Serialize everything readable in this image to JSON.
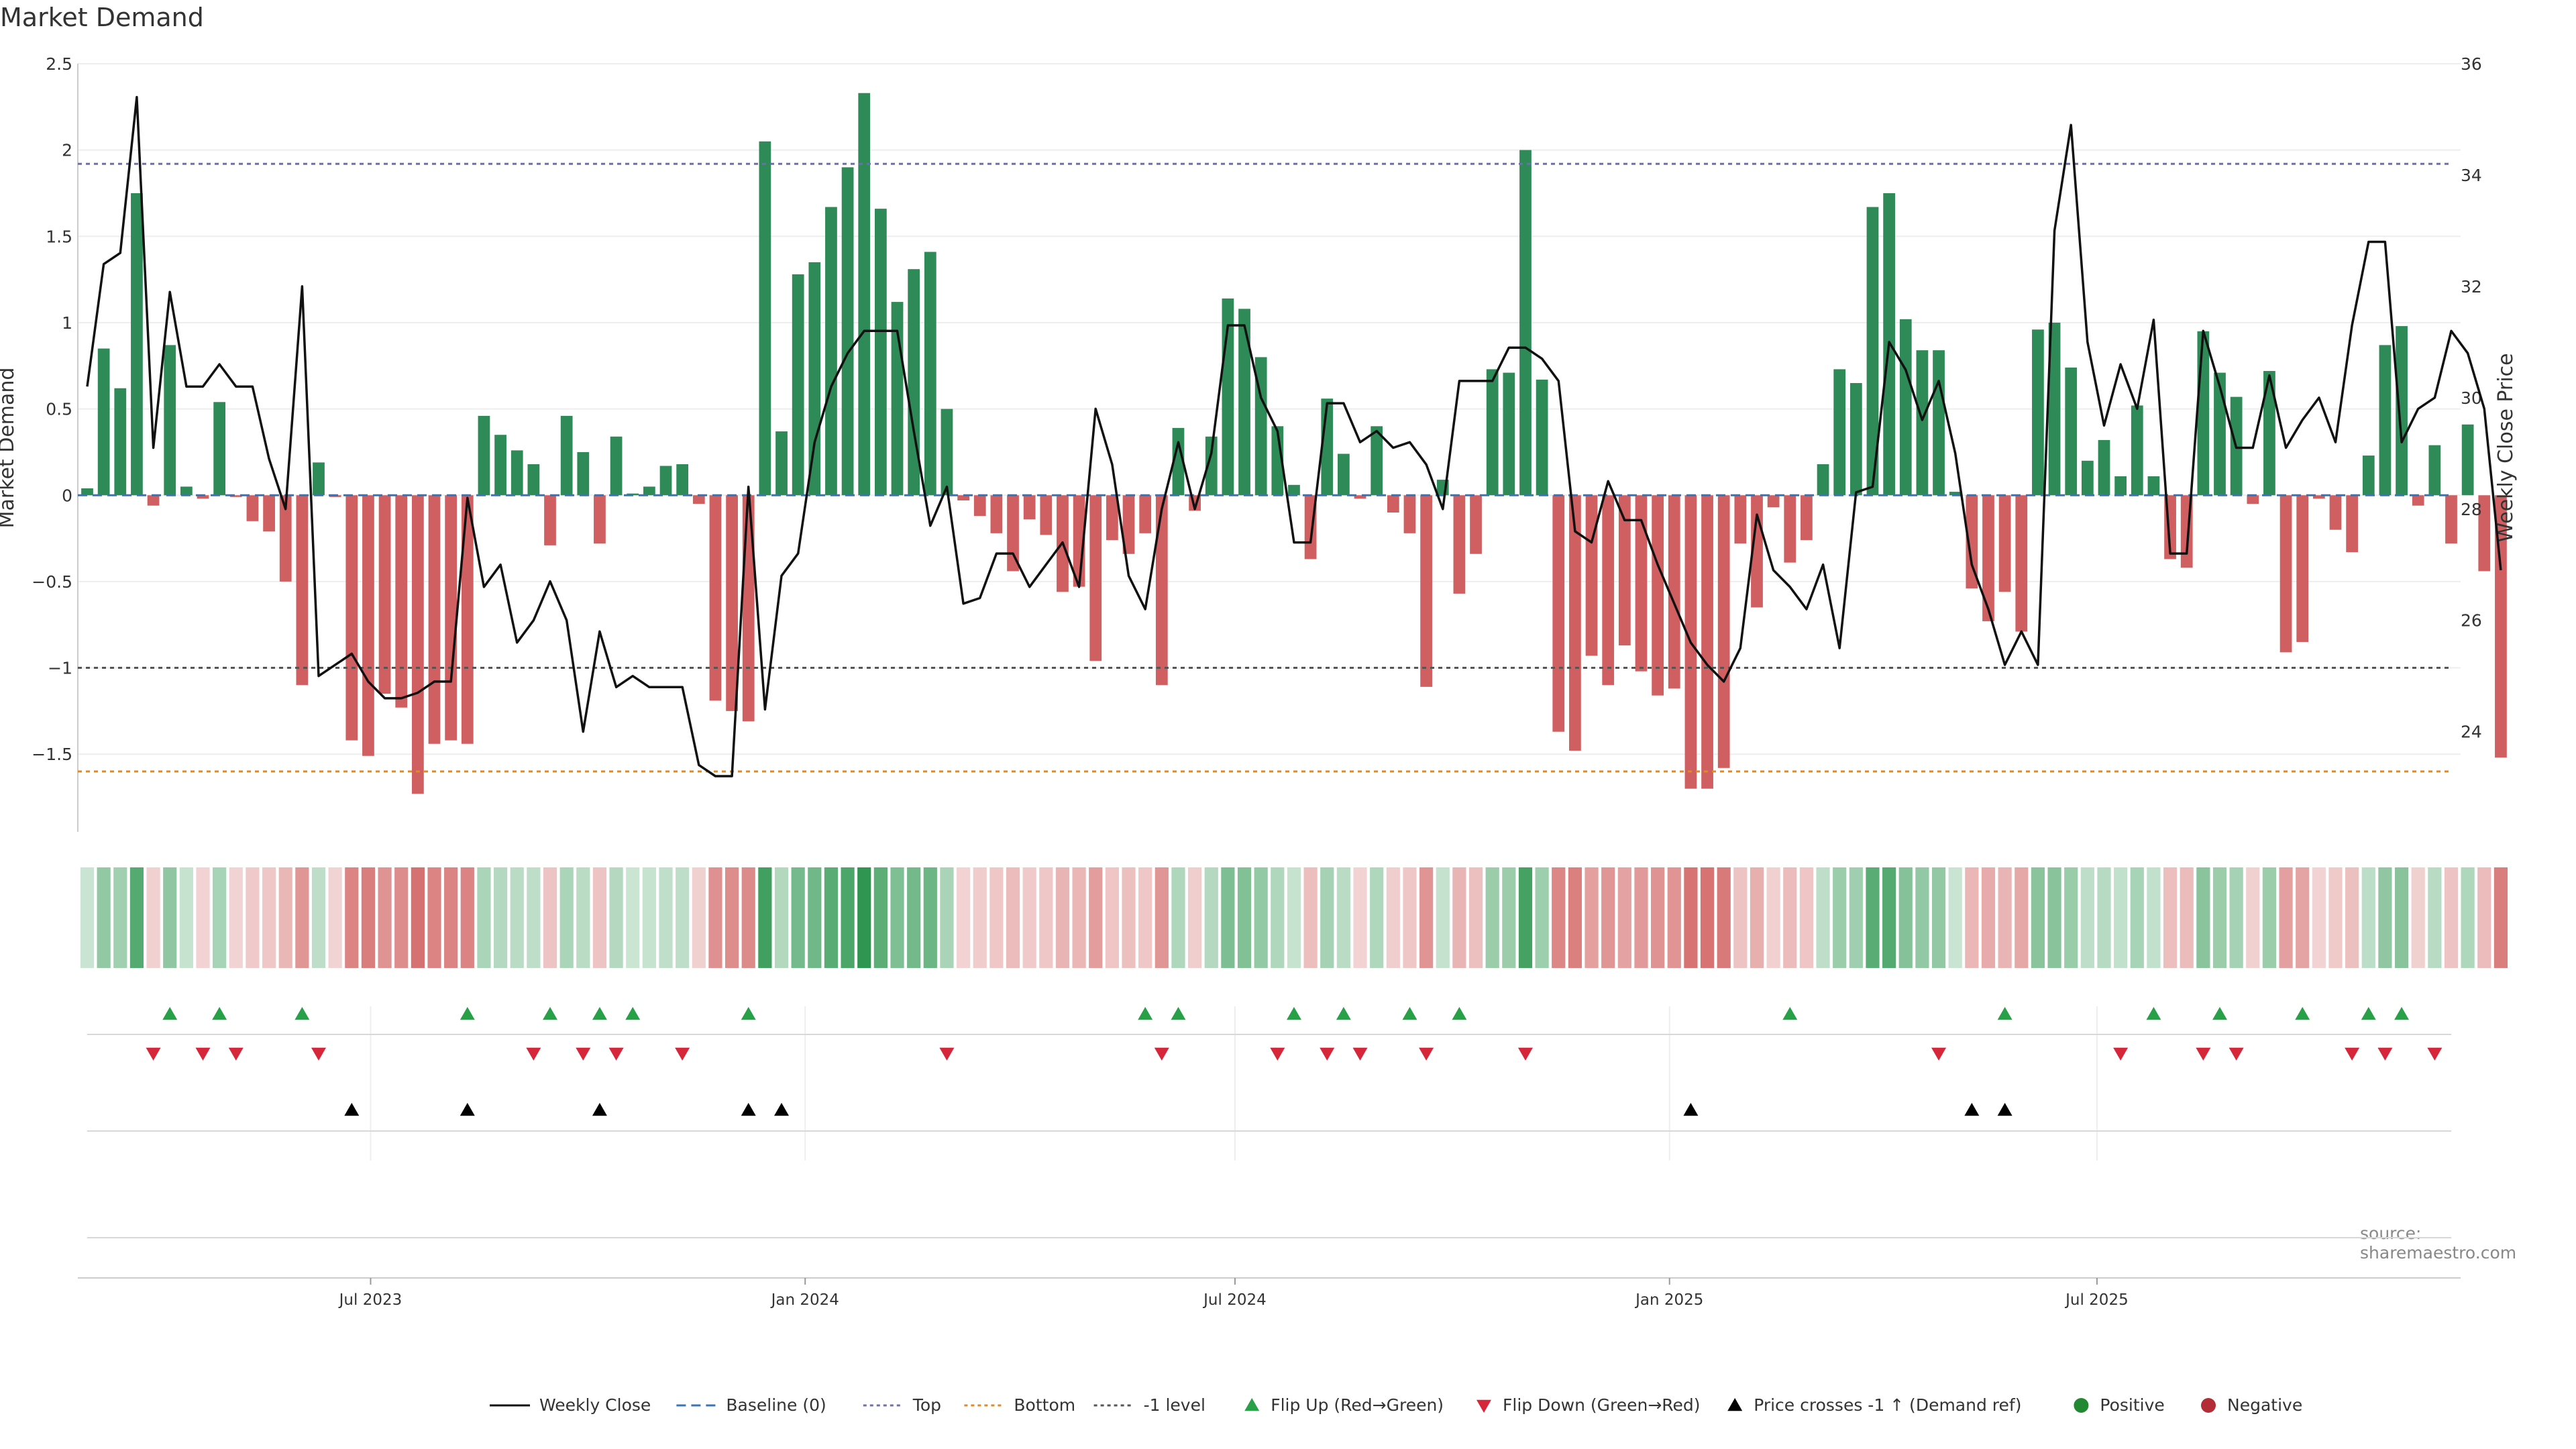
{
  "chart_data": {
    "type": "bar",
    "title": "Market Demand",
    "ylabel_left": "Market Demand",
    "ylabel_right": "Weekly Close Price",
    "ylim_left": [
      -1.95,
      2.5
    ],
    "ylim_right": [
      22.2,
      36.0
    ],
    "left_ticks": [
      2.5,
      2,
      1.5,
      1,
      0.5,
      0,
      -0.5,
      -1,
      -1.5
    ],
    "left_tick_labels": [
      "2.5",
      "2",
      "1.5",
      "1",
      "0.5",
      "0",
      "−0.5",
      "−1",
      "−1.5"
    ],
    "right_ticks": [
      36,
      34,
      32,
      30,
      28,
      26,
      24
    ],
    "right_tick_labels": [
      "36",
      "34",
      "32",
      "30",
      "28",
      "26",
      "24"
    ],
    "x_start": "2023-03-03",
    "week_count": 144,
    "x_ticks": [
      {
        "date": "2023-07-01",
        "label": "Jul 2023"
      },
      {
        "date": "2024-01-01",
        "label": "Jan 2024"
      },
      {
        "date": "2024-07-01",
        "label": "Jul 2024"
      },
      {
        "date": "2025-01-01",
        "label": "Jan 2025"
      },
      {
        "date": "2025-07-01",
        "label": "Jul 2025"
      }
    ],
    "reference_lines": {
      "top": 1.92,
      "bottom": -1.6,
      "minus_one": -1.0,
      "baseline": 0
    },
    "demand": [
      0.04,
      0.85,
      0.62,
      1.75,
      -0.06,
      0.87,
      0.05,
      -0.02,
      0.54,
      -0.01,
      -0.15,
      -0.21,
      -0.5,
      -1.1,
      0.19,
      -0.01,
      -1.42,
      -1.51,
      -1.15,
      -1.23,
      -1.73,
      -1.44,
      -1.42,
      -1.44,
      0.46,
      0.35,
      0.26,
      0.18,
      -0.29,
      0.46,
      0.25,
      -0.28,
      0.34,
      0.01,
      0.05,
      0.17,
      0.18,
      -0.05,
      -1.19,
      -1.25,
      -1.31,
      2.05,
      0.37,
      1.28,
      1.35,
      1.67,
      1.9,
      2.33,
      1.66,
      1.12,
      1.31,
      1.41,
      0.5,
      -0.03,
      -0.12,
      -0.22,
      -0.44,
      -0.14,
      -0.23,
      -0.56,
      -0.53,
      -0.96,
      -0.26,
      -0.34,
      -0.22,
      -1.1,
      0.39,
      -0.09,
      0.34,
      1.14,
      1.08,
      0.8,
      0.4,
      0.06,
      -0.37,
      0.56,
      0.24,
      -0.02,
      0.4,
      -0.1,
      -0.22,
      -1.11,
      0.09,
      -0.57,
      -0.34,
      0.73,
      0.71,
      2.0,
      0.67,
      -1.37,
      -1.48,
      -0.93,
      -1.1,
      -0.87,
      -1.02,
      -1.16,
      -1.12,
      -1.7,
      -1.7,
      -1.58,
      -0.28,
      -0.65,
      -0.07,
      -0.39,
      -0.26,
      0.18,
      0.73,
      0.65,
      1.67,
      1.75,
      1.02,
      0.84,
      0.84,
      0.02,
      -0.54,
      -0.73,
      -0.56,
      -0.79,
      0.96,
      1.0,
      0.74,
      0.2,
      0.32,
      0.11,
      0.52,
      0.11,
      -0.37,
      -0.42,
      0.95,
      0.71,
      0.57,
      -0.05,
      0.72,
      -0.91,
      -0.85,
      -0.02,
      -0.2,
      -0.33,
      0.23,
      0.87,
      0.98,
      -0.06,
      0.29,
      -0.28,
      0.41,
      -0.44,
      -1.52
    ],
    "close": [
      30.2,
      32.4,
      32.6,
      35.4,
      29.1,
      31.9,
      30.2,
      30.2,
      30.6,
      30.2,
      30.2,
      28.9,
      28.0,
      32.0,
      25.0,
      25.2,
      25.4,
      24.9,
      24.6,
      24.6,
      24.7,
      24.9,
      24.9,
      28.2,
      26.6,
      27.0,
      25.6,
      26.0,
      26.7,
      26.0,
      24.0,
      25.8,
      24.8,
      25.0,
      24.8,
      24.8,
      24.8,
      23.4,
      23.2,
      23.2,
      28.4,
      24.4,
      26.8,
      27.2,
      29.2,
      30.2,
      30.8,
      31.2,
      31.2,
      31.2,
      29.4,
      27.7,
      28.4,
      26.3,
      26.4,
      27.2,
      27.2,
      26.6,
      27.0,
      27.4,
      26.6,
      29.8,
      28.8,
      26.8,
      26.2,
      28.0,
      29.2,
      28.0,
      29.0,
      31.3,
      31.3,
      30.0,
      29.4,
      27.4,
      27.4,
      29.9,
      29.9,
      29.2,
      29.4,
      29.1,
      29.2,
      28.8,
      28.0,
      30.3,
      30.3,
      30.3,
      30.9,
      30.9,
      30.7,
      30.3,
      27.6,
      27.4,
      28.5,
      27.8,
      27.8,
      27.0,
      26.3,
      25.6,
      25.2,
      24.9,
      25.5,
      27.9,
      26.9,
      26.6,
      26.2,
      27.0,
      25.5,
      28.3,
      28.4,
      31.0,
      30.5,
      29.6,
      30.3,
      29.0,
      27.0,
      26.2,
      25.2,
      25.8,
      25.2,
      33.0,
      34.9,
      31.0,
      29.5,
      30.6,
      29.8,
      31.4,
      27.2,
      27.2,
      31.2,
      30.2,
      29.1,
      29.1,
      30.4,
      29.1,
      29.6,
      30.0,
      29.2,
      31.3,
      32.8,
      32.8,
      29.2,
      29.8,
      30.0,
      31.2,
      30.8,
      29.8,
      26.9
    ],
    "flip_up_weeks": [
      5,
      8,
      13,
      23,
      28,
      31,
      33,
      40,
      64,
      66,
      73,
      76,
      80,
      83,
      103,
      116,
      125,
      129,
      134,
      138,
      140
    ],
    "flip_down_weeks": [
      4,
      7,
      9,
      14,
      27,
      30,
      32,
      36,
      52,
      65,
      72,
      75,
      77,
      81,
      87,
      112,
      123,
      128,
      130,
      137,
      139,
      142
    ],
    "price_cross_weeks": [
      16,
      23,
      31,
      40,
      42,
      97,
      114,
      116
    ],
    "legend": [
      {
        "label": "Weekly Close",
        "kind": "line",
        "color": "#111111"
      },
      {
        "label": "Baseline (0)",
        "kind": "dash",
        "color": "#3a74b8"
      },
      {
        "label": "Top",
        "kind": "dots",
        "color": "#6d6db3"
      },
      {
        "label": "Bottom",
        "kind": "dots",
        "color": "#e08a22"
      },
      {
        "label": "-1 level",
        "kind": "dots",
        "color": "#555555"
      },
      {
        "label": "Flip Up (Red→Green)",
        "kind": "tri-up",
        "color": "#28a048"
      },
      {
        "label": "Flip Down (Green→Red)",
        "kind": "tri-down",
        "color": "#d6273a"
      },
      {
        "label": "Price crosses -1 ↑ (Demand ref)",
        "kind": "tri-up",
        "color": "#000000"
      },
      {
        "label": "Positive",
        "kind": "circle",
        "color": "#228833"
      },
      {
        "label": "Negative",
        "kind": "circle",
        "color": "#b22d35"
      }
    ],
    "colors": {
      "positive_bar": "#2e8a57",
      "negative_bar": "#cf5f60",
      "line": "#111111"
    }
  },
  "title": "Market Demand",
  "source": "source: sharemaestro.com"
}
